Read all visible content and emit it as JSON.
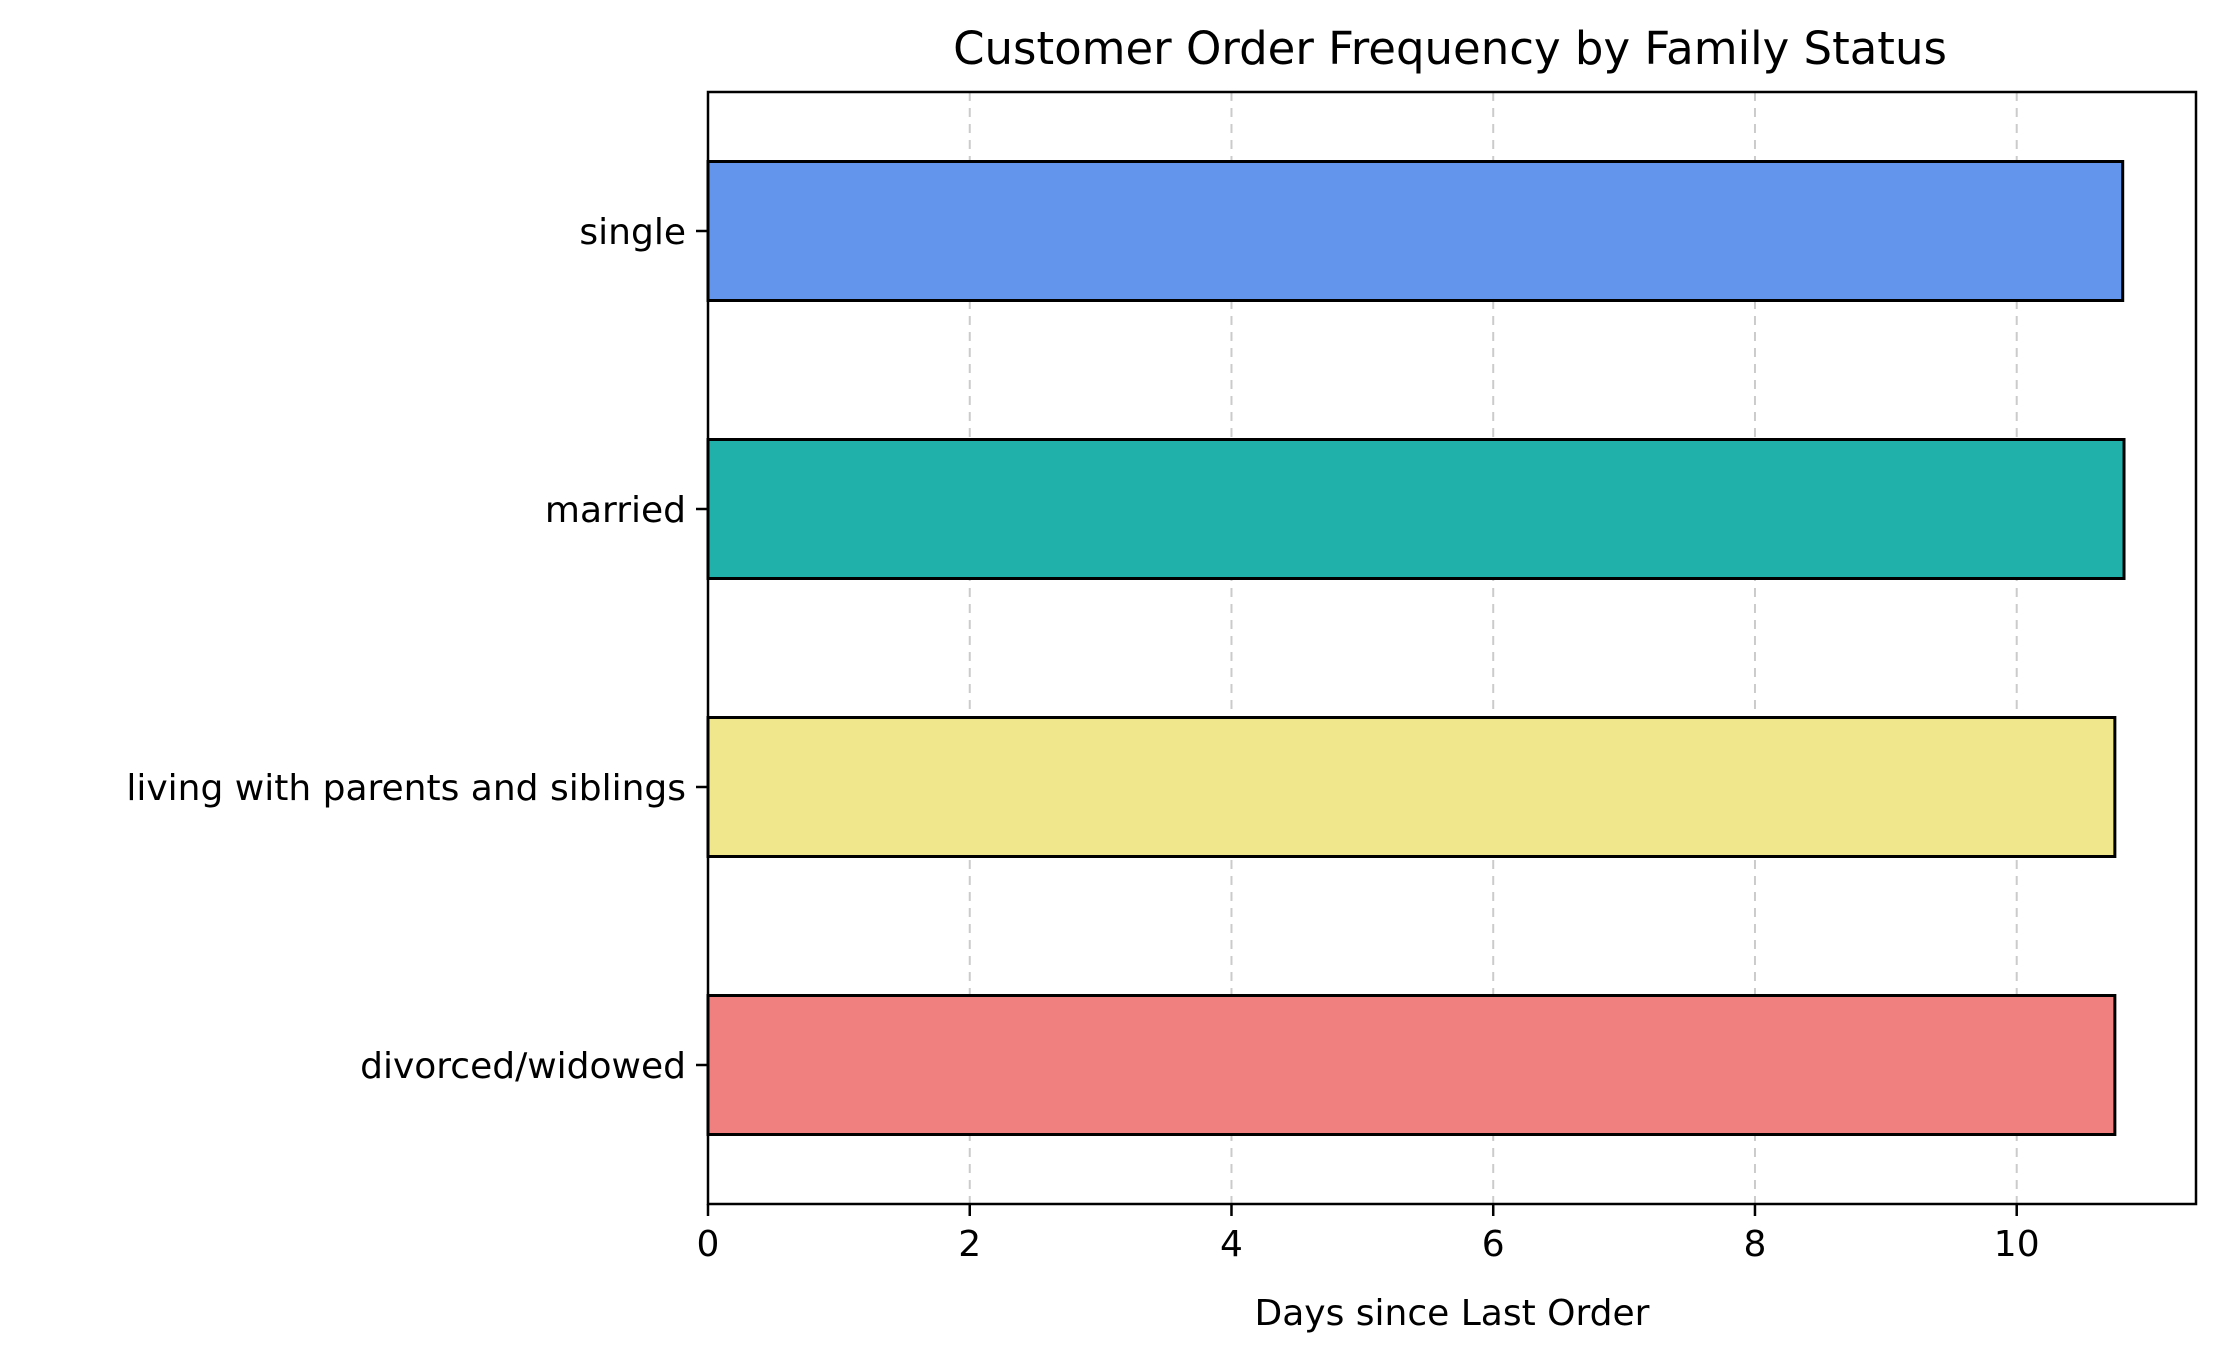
{
  "chart_data": {
    "type": "bar",
    "orientation": "horizontal",
    "title": "Customer Order Frequency by Family Status",
    "xlabel": "Days since Last Order",
    "ylabel": "",
    "categories": [
      "single",
      "married",
      "living with parents and siblings",
      "divorced/widowed"
    ],
    "values": [
      10.81,
      10.82,
      10.75,
      10.75
    ],
    "colors": [
      "#6495ED",
      "#20B2AA",
      "#F0E68C",
      "#F08080"
    ],
    "xlim": [
      0,
      11.37
    ],
    "xticks": [
      0,
      2,
      4,
      6,
      8,
      10
    ],
    "grid": "x-dashed",
    "legend": "none"
  }
}
